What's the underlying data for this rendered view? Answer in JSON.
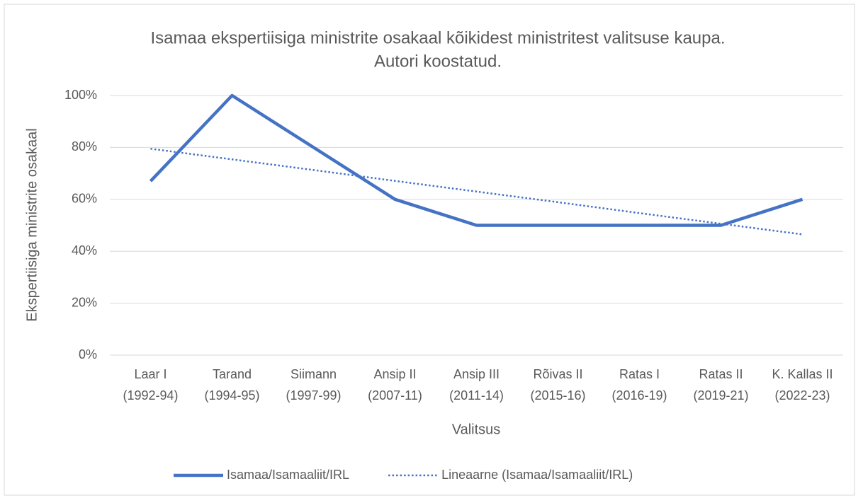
{
  "chart_data": {
    "type": "line",
    "title": [
      "Isamaa ekspertiisiga ministrite osakaal kõikidest ministritest valitsuse kaupa.",
      "Autori koostatud."
    ],
    "y_label": "Ekspertiisiga ministrite osakaal",
    "x_label": "Valitsus",
    "categories": [
      [
        "Laar I",
        "(1992-94)"
      ],
      [
        "Tarand",
        "(1994-95)"
      ],
      [
        "Siimann",
        "(1997-99)"
      ],
      [
        "Ansip II",
        "(2007-11)"
      ],
      [
        "Ansip III",
        "(2011-14)"
      ],
      [
        "Rõivas II",
        "(2015-16)"
      ],
      [
        "Ratas I",
        "(2016-19)"
      ],
      [
        "Ratas II",
        "(2019-21)"
      ],
      [
        "K. Kallas II",
        "(2022-23)"
      ]
    ],
    "series": [
      {
        "name": "Isamaa/Isamaaliit/IRL",
        "color": "#4472c4",
        "style": "solid",
        "values": [
          67,
          100,
          80,
          60,
          50,
          50,
          50,
          50,
          60
        ]
      },
      {
        "name": "Lineaarne (Isamaa/Isamaaliit/IRL)",
        "color": "#4472c4",
        "style": "dotted",
        "values": [
          79.5,
          75.4,
          71.3,
          67.1,
          63.0,
          58.9,
          54.7,
          50.6,
          46.5
        ]
      }
    ],
    "ylim": [
      0,
      100
    ],
    "yticks": [
      {
        "value": 0,
        "label": "0%"
      },
      {
        "value": 20,
        "label": "20%"
      },
      {
        "value": 40,
        "label": "40%"
      },
      {
        "value": 60,
        "label": "60%"
      },
      {
        "value": 80,
        "label": "80%"
      },
      {
        "value": 100,
        "label": "100%"
      }
    ],
    "grid": true,
    "legend": "bottom"
  }
}
